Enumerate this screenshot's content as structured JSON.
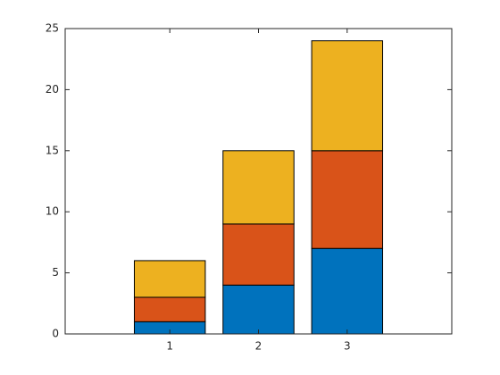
{
  "chart_data": {
    "type": "stacked_bar",
    "x": [
      1,
      2,
      3
    ],
    "xlim": [
      -0.18,
      4.18
    ],
    "xticks": [
      1,
      2,
      3
    ],
    "series": [
      {
        "color": "#0072bd",
        "values": [
          1,
          4,
          7
        ]
      },
      {
        "color": "#d95319",
        "values": [
          2,
          5,
          8
        ]
      },
      {
        "color": "#edb120",
        "values": [
          3,
          6,
          9
        ]
      }
    ],
    "ylim": [
      0,
      25
    ],
    "yticks": [
      0,
      5,
      10,
      15,
      20,
      25
    ],
    "grid": false,
    "box": true
  }
}
